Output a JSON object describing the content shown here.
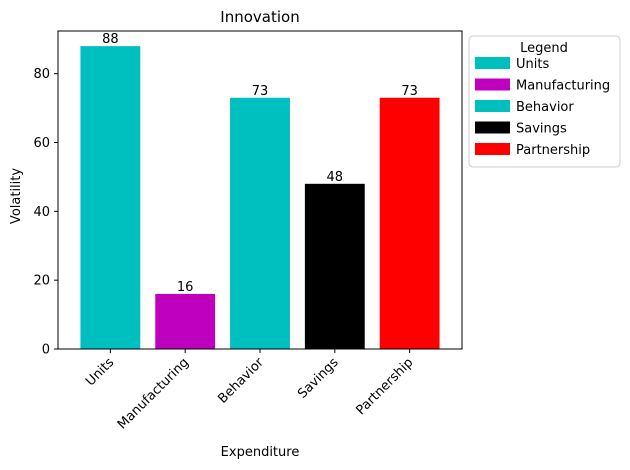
{
  "chart_data": {
    "type": "bar",
    "title": "Innovation",
    "xlabel": "Expenditure",
    "ylabel": "Volatility",
    "categories": [
      "Units",
      "Manufacturing",
      "Behavior",
      "Savings",
      "Partnership"
    ],
    "values": [
      88,
      16,
      73,
      48,
      73
    ],
    "colors": [
      "#00bfbf",
      "#bf00bf",
      "#00bfbf",
      "#000000",
      "#ff0000"
    ],
    "ylim": [
      0,
      92.4
    ],
    "yticks": [
      0,
      20,
      40,
      60,
      80
    ],
    "grid": false,
    "data_labels": true,
    "legend": {
      "title": "Legend",
      "placement": "outside-right-top",
      "entries": [
        {
          "label": "Units",
          "color": "#00bfbf"
        },
        {
          "label": "Manufacturing",
          "color": "#bf00bf"
        },
        {
          "label": "Behavior",
          "color": "#00bfbf"
        },
        {
          "label": "Savings",
          "color": "#000000"
        },
        {
          "label": "Partnership",
          "color": "#ff0000"
        }
      ]
    }
  }
}
